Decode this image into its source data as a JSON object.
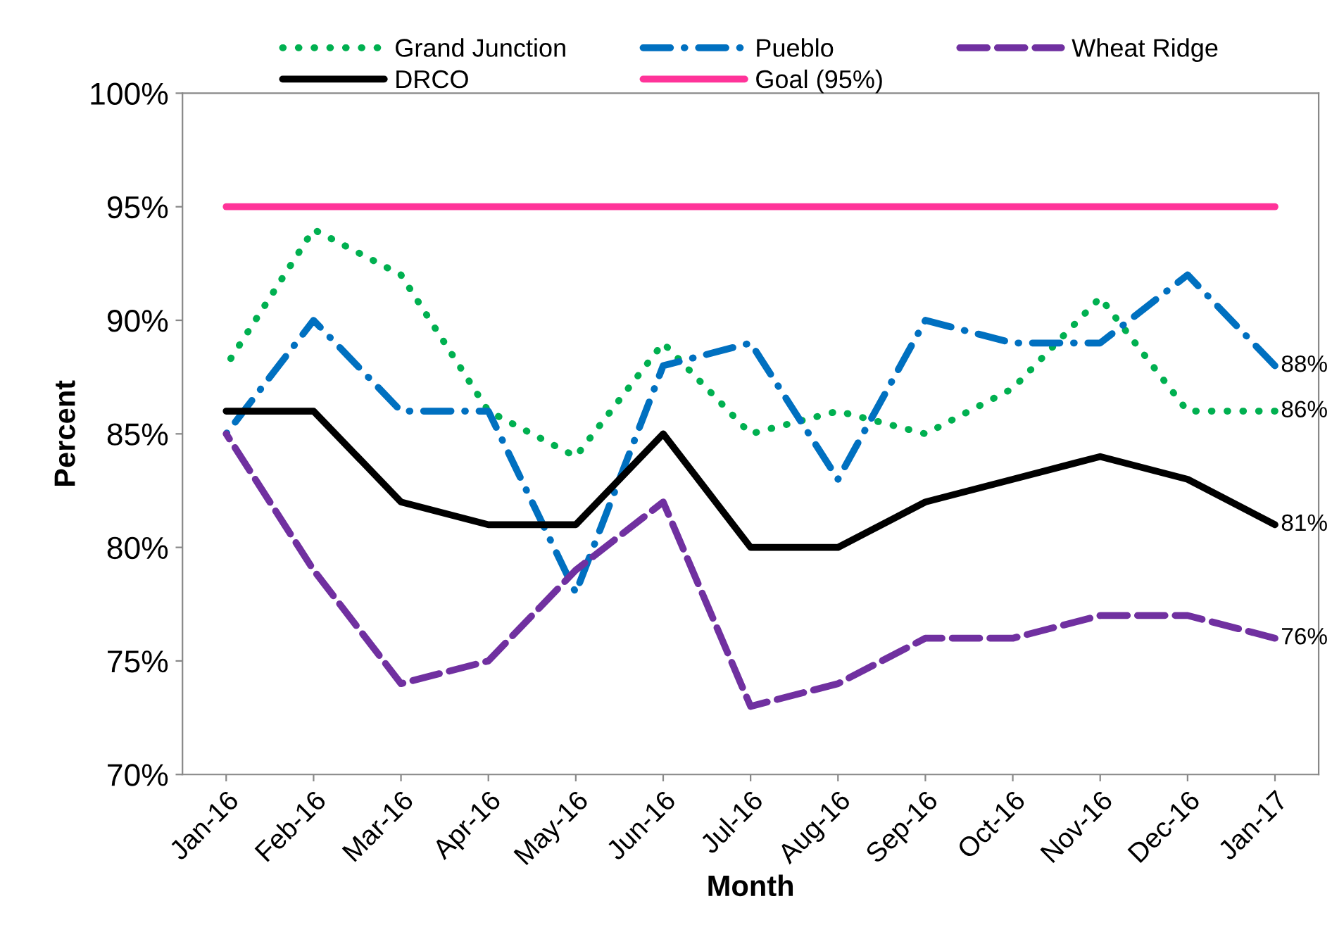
{
  "chart_data": {
    "type": "line",
    "xlabel": "Month",
    "ylabel": "Percent",
    "categories": [
      "Jan-16",
      "Feb-16",
      "Mar-16",
      "Apr-16",
      "May-16",
      "Jun-16",
      "Jul-16",
      "Aug-16",
      "Sep-16",
      "Oct-16",
      "Nov-16",
      "Dec-16",
      "Jan-17"
    ],
    "series": [
      {
        "name": "Grand Junction",
        "color": "#00b050",
        "line_style": "dotted",
        "values": [
          88,
          94,
          92,
          86,
          84,
          89,
          85,
          86,
          85,
          87,
          91,
          86,
          86
        ],
        "value_labels": [
          null,
          null,
          null,
          null,
          null,
          null,
          null,
          null,
          null,
          null,
          null,
          null,
          "86%"
        ]
      },
      {
        "name": "Pueblo",
        "color": "#0070c0",
        "line_style": "dashdot",
        "values": [
          85,
          90,
          86,
          86,
          78,
          88,
          89,
          83,
          90,
          89,
          89,
          92,
          88
        ],
        "value_labels": [
          null,
          null,
          null,
          null,
          null,
          null,
          null,
          null,
          null,
          null,
          null,
          null,
          "88%"
        ]
      },
      {
        "name": "Wheat Ridge",
        "color": "#7030a0",
        "line_style": "dashed",
        "values": [
          85,
          79,
          74,
          75,
          79,
          82,
          73,
          74,
          76,
          76,
          77,
          77,
          76
        ],
        "value_labels": [
          null,
          null,
          null,
          null,
          null,
          null,
          null,
          null,
          null,
          null,
          null,
          null,
          "76%"
        ]
      },
      {
        "name": "DRCO",
        "color": "#000000",
        "line_style": "solid",
        "values": [
          86,
          86,
          82,
          81,
          81,
          85,
          80,
          80,
          82,
          83,
          84,
          83,
          81
        ],
        "value_labels": [
          null,
          null,
          null,
          null,
          null,
          null,
          null,
          null,
          null,
          null,
          null,
          null,
          "81%"
        ]
      }
    ],
    "ref_lines": [
      {
        "axis": "y",
        "value": 95,
        "label": "Goal (95%)",
        "color": "#ff3399",
        "line_style": "solid"
      }
    ],
    "ylim": [
      70,
      100
    ],
    "yticks": [
      {
        "value": 70,
        "label": "70%"
      },
      {
        "value": 75,
        "label": "75%"
      },
      {
        "value": 80,
        "label": "80%"
      },
      {
        "value": 85,
        "label": "85%"
      },
      {
        "value": 90,
        "label": "90%"
      },
      {
        "value": 95,
        "label": "95%"
      },
      {
        "value": 100,
        "label": "100%"
      }
    ],
    "grid": false,
    "legend": "top",
    "marker": "none"
  }
}
